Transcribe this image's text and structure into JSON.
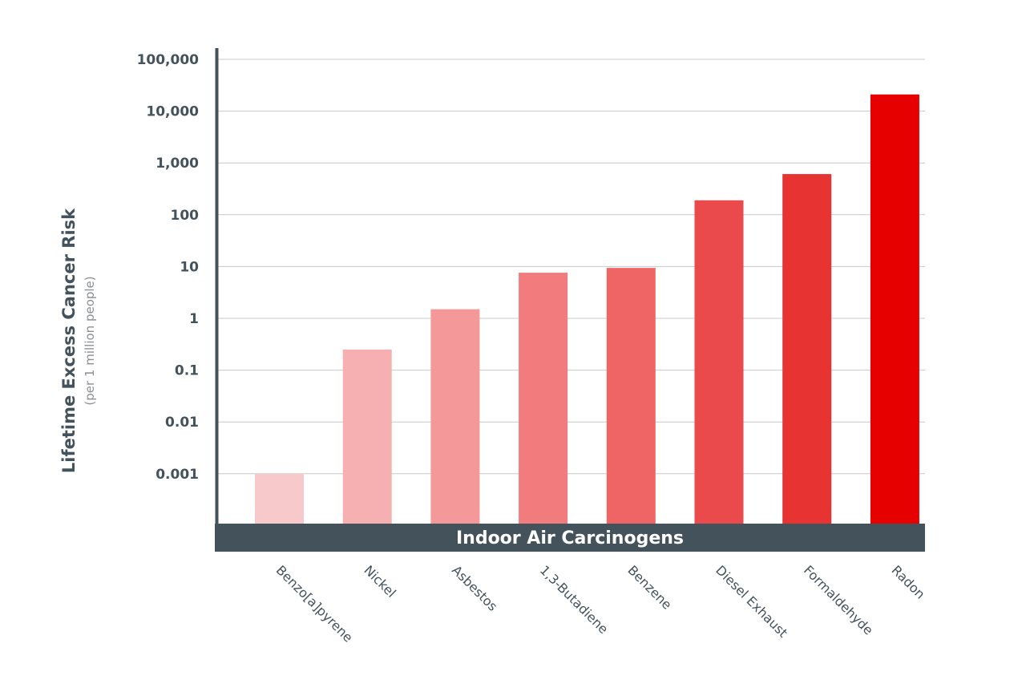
{
  "chart_data": {
    "type": "bar",
    "title": "",
    "xlabel": "Indoor Air Carcinogens",
    "ylabel": "Lifetime Excess Cancer Risk",
    "ylabel_sub": "(per 1 million people)",
    "yscale": "log",
    "ylim": [
      0.0001,
      100000
    ],
    "yticks": [
      0.001,
      0.01,
      0.1,
      1,
      10,
      100,
      1000,
      10000,
      100000
    ],
    "ytick_labels": [
      "0.001",
      "0.01",
      "0.1",
      "1",
      "10",
      "100",
      "1,000",
      "10,000",
      "100,000"
    ],
    "grid": true,
    "categories": [
      "Benzo[a]pyrene",
      "Nickel",
      "Asbestos",
      "1,3-Butadiene",
      "Benzene",
      "Diesel Exhaust",
      "Formaldehyde",
      "Radon"
    ],
    "values": [
      0.001,
      0.25,
      1.5,
      7.6,
      9.4,
      190,
      610,
      21000
    ],
    "colors": [
      "#f8c9ca",
      "#f6b0b1",
      "#f49899",
      "#f27b7e",
      "#ef6566",
      "#ea4a4b",
      "#e83333",
      "#e60000"
    ],
    "axis_color": "#44525c",
    "grid_color": "#c8c8c8"
  }
}
